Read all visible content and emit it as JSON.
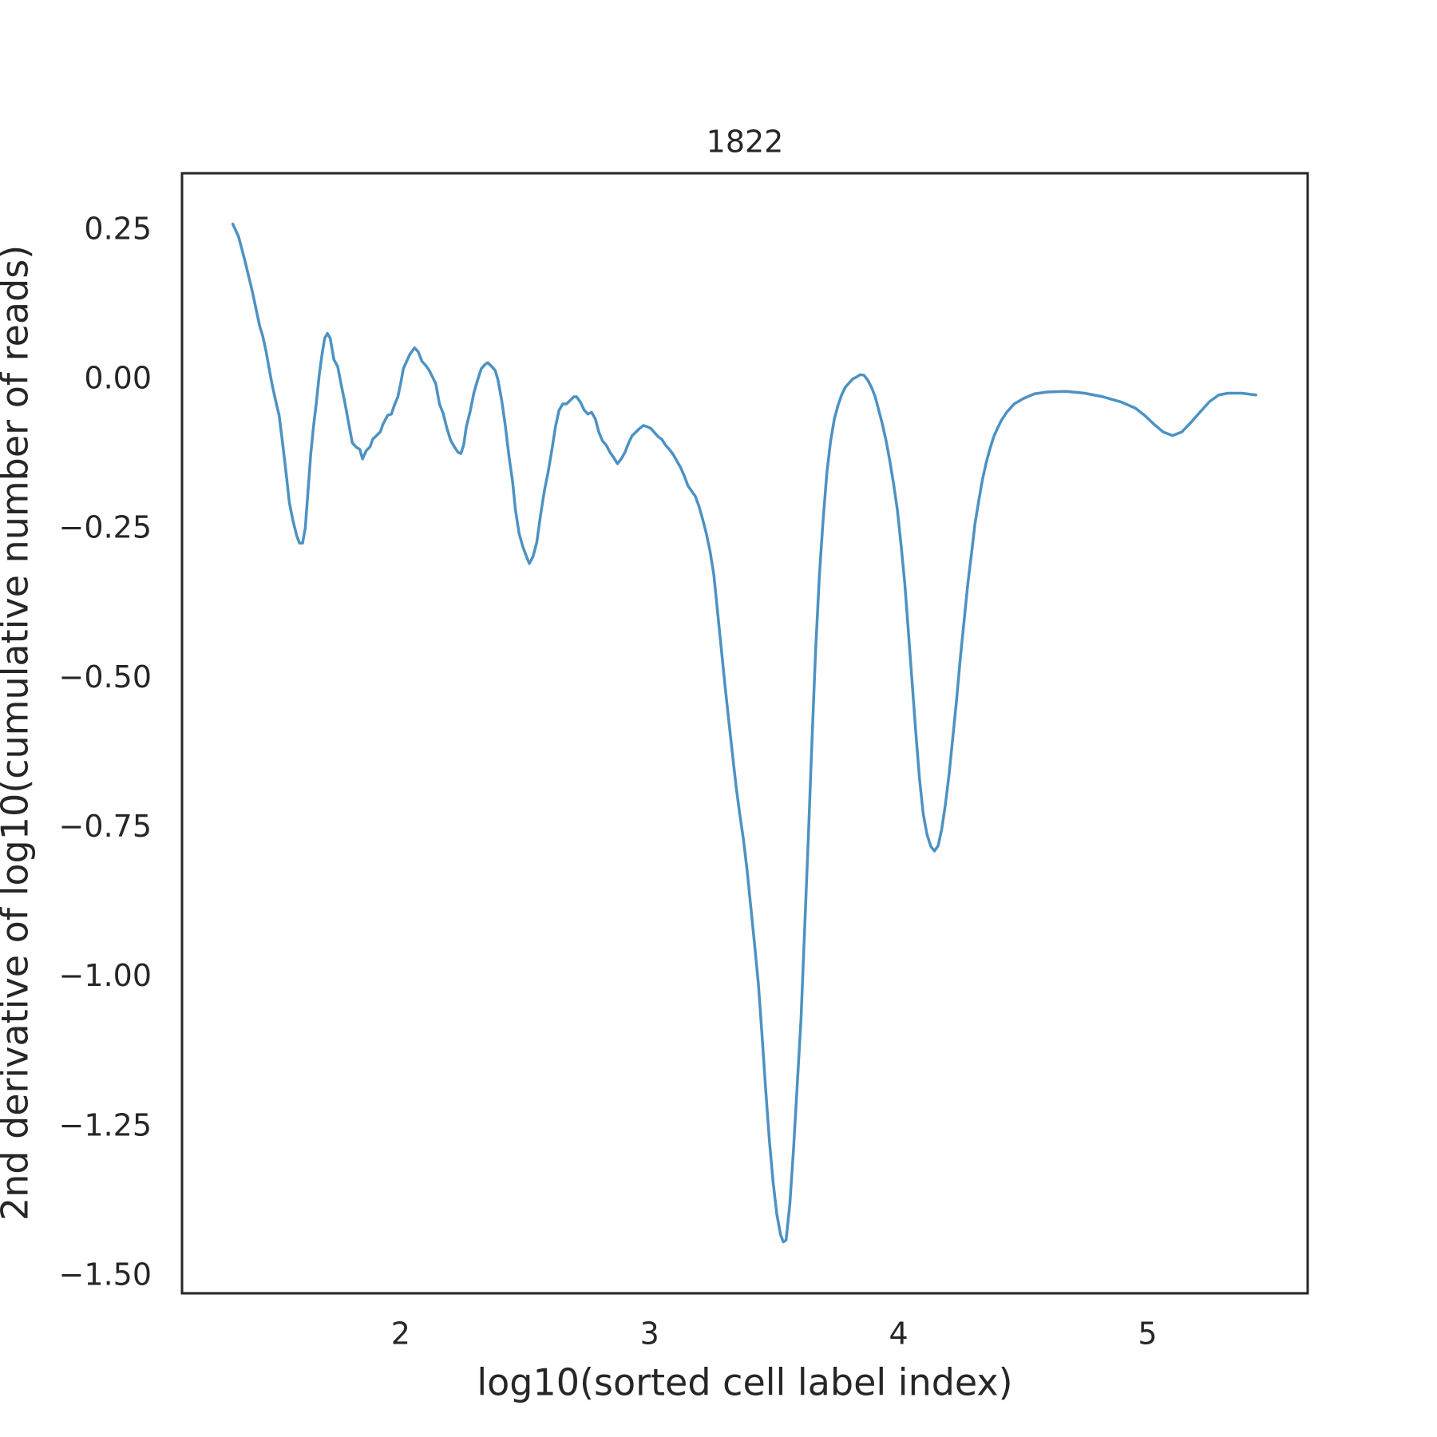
{
  "chart_data": {
    "type": "line",
    "title": "1822",
    "xlabel": "log10(sorted cell label index)",
    "ylabel": "2nd derivative of log10(cumulative number of reads)",
    "color": "#4c92c3",
    "grid": false,
    "xlim": [
      1.122,
      5.643
    ],
    "ylim": [
      -1.528,
      0.346
    ],
    "xticks": [
      2,
      3,
      4,
      5
    ],
    "yticks": [
      {
        "value": 0.25,
        "label": "0.25"
      },
      {
        "value": 0,
        "label": "0.00"
      },
      {
        "value": -0.25,
        "label": "−0.25"
      },
      {
        "value": -0.5,
        "label": "−0.50"
      },
      {
        "value": -0.75,
        "label": "−0.75"
      },
      {
        "value": -1,
        "label": "−1.00"
      },
      {
        "value": -1.25,
        "label": "−1.25"
      },
      {
        "value": -1.5,
        "label": "−1.50"
      }
    ],
    "x": [
      1.326,
      1.349,
      1.375,
      1.405,
      1.434,
      1.446,
      1.46,
      1.475,
      1.486,
      1.501,
      1.512,
      1.527,
      1.542,
      1.553,
      1.568,
      1.583,
      1.594,
      1.606,
      1.617,
      1.628,
      1.639,
      1.65,
      1.661,
      1.673,
      1.684,
      1.695,
      1.706,
      1.717,
      1.732,
      1.747,
      1.762,
      1.777,
      1.792,
      1.806,
      1.821,
      1.836,
      1.847,
      1.862,
      1.877,
      1.888,
      1.903,
      1.918,
      1.929,
      1.948,
      1.963,
      1.974,
      1.989,
      2.0,
      2.011,
      2.026,
      2.037,
      2.056,
      2.071,
      2.086,
      2.1,
      2.115,
      2.127,
      2.141,
      2.156,
      2.171,
      2.186,
      2.201,
      2.216,
      2.231,
      2.242,
      2.253,
      2.264,
      2.279,
      2.294,
      2.309,
      2.324,
      2.339,
      2.35,
      2.365,
      2.38,
      2.391,
      2.406,
      2.421,
      2.435,
      2.45,
      2.461,
      2.476,
      2.491,
      2.506,
      2.517,
      2.532,
      2.547,
      2.562,
      2.577,
      2.592,
      2.607,
      2.622,
      2.636,
      2.651,
      2.666,
      2.681,
      2.696,
      2.707,
      2.722,
      2.737,
      2.752,
      2.767,
      2.782,
      2.796,
      2.811,
      2.826,
      2.841,
      2.856,
      2.871,
      2.886,
      2.901,
      2.916,
      2.93,
      2.945,
      2.96,
      2.975,
      2.99,
      3.005,
      3.02,
      3.035,
      3.049,
      3.064,
      3.079,
      3.094,
      3.109,
      3.124,
      3.139,
      3.154,
      3.169,
      3.183,
      3.198,
      3.213,
      3.228,
      3.243,
      3.258,
      3.273,
      3.288,
      3.303,
      3.317,
      3.332,
      3.347,
      3.362,
      3.377,
      3.392,
      3.407,
      3.422,
      3.437,
      3.451,
      3.466,
      3.481,
      3.496,
      3.511,
      3.526,
      3.537,
      3.548,
      3.563,
      3.578,
      3.593,
      3.608,
      3.623,
      3.638,
      3.652,
      3.667,
      3.682,
      3.697,
      3.712,
      3.727,
      3.742,
      3.757,
      3.771,
      3.786,
      3.801,
      3.816,
      3.831,
      3.846,
      3.861,
      3.876,
      3.891,
      3.906,
      3.92,
      3.935,
      3.95,
      3.965,
      3.98,
      3.995,
      4.01,
      4.025,
      4.039,
      4.054,
      4.069,
      4.084,
      4.099,
      4.114,
      4.129,
      4.144,
      4.159,
      4.173,
      4.188,
      4.203,
      4.218,
      4.233,
      4.248,
      4.263,
      4.278,
      4.293,
      4.307,
      4.322,
      4.337,
      4.352,
      4.367,
      4.382,
      4.397,
      4.412,
      4.434,
      4.464,
      4.501,
      4.546,
      4.598,
      4.672,
      4.747,
      4.821,
      4.895,
      4.951,
      4.988,
      5.026,
      5.063,
      5.1,
      5.137,
      5.174,
      5.212,
      5.249,
      5.286,
      5.323,
      5.379,
      5.435
    ],
    "values": [
      0.261,
      0.24,
      0.199,
      0.147,
      0.09,
      0.074,
      0.047,
      0.012,
      -0.012,
      -0.04,
      -0.059,
      -0.109,
      -0.163,
      -0.205,
      -0.236,
      -0.261,
      -0.273,
      -0.273,
      -0.248,
      -0.186,
      -0.124,
      -0.078,
      -0.04,
      0.008,
      0.042,
      0.07,
      0.078,
      0.07,
      0.034,
      0.023,
      -0.009,
      -0.04,
      -0.074,
      -0.105,
      -0.112,
      -0.116,
      -0.132,
      -0.118,
      -0.112,
      -0.099,
      -0.093,
      -0.087,
      -0.074,
      -0.059,
      -0.057,
      -0.043,
      -0.028,
      -0.006,
      0.019,
      0.033,
      0.043,
      0.054,
      0.047,
      0.031,
      0.025,
      0.016,
      0.006,
      -0.006,
      -0.04,
      -0.056,
      -0.081,
      -0.101,
      -0.112,
      -0.121,
      -0.123,
      -0.109,
      -0.078,
      -0.053,
      -0.022,
      0.0,
      0.019,
      0.026,
      0.029,
      0.023,
      0.016,
      0.0,
      -0.034,
      -0.078,
      -0.127,
      -0.171,
      -0.217,
      -0.257,
      -0.279,
      -0.296,
      -0.307,
      -0.295,
      -0.271,
      -0.226,
      -0.186,
      -0.155,
      -0.118,
      -0.078,
      -0.051,
      -0.04,
      -0.04,
      -0.034,
      -0.028,
      -0.028,
      -0.037,
      -0.05,
      -0.057,
      -0.054,
      -0.065,
      -0.087,
      -0.102,
      -0.109,
      -0.121,
      -0.13,
      -0.14,
      -0.132,
      -0.121,
      -0.105,
      -0.093,
      -0.087,
      -0.081,
      -0.076,
      -0.078,
      -0.081,
      -0.088,
      -0.095,
      -0.099,
      -0.109,
      -0.116,
      -0.124,
      -0.135,
      -0.146,
      -0.16,
      -0.177,
      -0.186,
      -0.194,
      -0.211,
      -0.233,
      -0.257,
      -0.287,
      -0.326,
      -0.388,
      -0.45,
      -0.512,
      -0.566,
      -0.623,
      -0.679,
      -0.726,
      -0.769,
      -0.822,
      -0.884,
      -0.946,
      -1.011,
      -1.093,
      -1.186,
      -1.272,
      -1.342,
      -1.396,
      -1.43,
      -1.442,
      -1.439,
      -1.38,
      -1.287,
      -1.179,
      -1.07,
      -0.915,
      -0.76,
      -0.605,
      -0.45,
      -0.326,
      -0.233,
      -0.155,
      -0.102,
      -0.065,
      -0.042,
      -0.025,
      -0.012,
      -0.005,
      0.002,
      0.005,
      0.009,
      0.008,
      0.0,
      -0.012,
      -0.028,
      -0.05,
      -0.074,
      -0.102,
      -0.136,
      -0.174,
      -0.217,
      -0.276,
      -0.341,
      -0.419,
      -0.504,
      -0.589,
      -0.667,
      -0.726,
      -0.76,
      -0.78,
      -0.788,
      -0.779,
      -0.752,
      -0.71,
      -0.659,
      -0.597,
      -0.535,
      -0.465,
      -0.403,
      -0.341,
      -0.29,
      -0.24,
      -0.202,
      -0.166,
      -0.138,
      -0.115,
      -0.095,
      -0.081,
      -0.068,
      -0.054,
      -0.04,
      -0.031,
      -0.023,
      -0.02,
      -0.019,
      -0.022,
      -0.028,
      -0.037,
      -0.047,
      -0.059,
      -0.074,
      -0.087,
      -0.093,
      -0.087,
      -0.071,
      -0.053,
      -0.036,
      -0.025,
      -0.022,
      -0.022,
      -0.025
    ]
  }
}
